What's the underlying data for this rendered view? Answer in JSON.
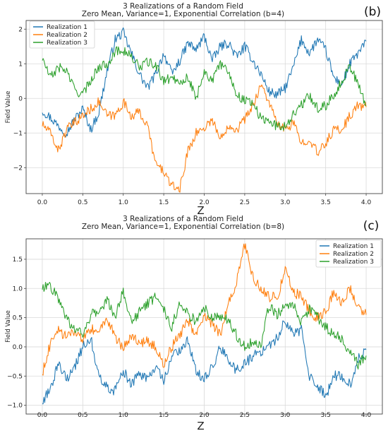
{
  "colors": {
    "series1": "#1f77b4",
    "series2": "#ff7f0e",
    "series3": "#2ca02c"
  },
  "chart_data": [
    {
      "type": "line",
      "panel_label": "(b)",
      "title": "3 Realizations of a Random Field",
      "subtitle": "Zero Mean, Variance=1, Exponential Correlation (b=4)",
      "xlabel": "Z",
      "ylabel": "Field Value",
      "xlim": [
        -0.2,
        4.2
      ],
      "ylim": [
        -2.75,
        2.25
      ],
      "xticks": [
        0.0,
        0.5,
        1.0,
        1.5,
        2.0,
        2.5,
        3.0,
        3.5,
        4.0
      ],
      "xtick_labels": [
        "0.0",
        "0.5",
        "1.0",
        "1.5",
        "2.0",
        "2.5",
        "3.0",
        "3.5",
        "4.0"
      ],
      "yticks": [
        -2,
        -1,
        0,
        1,
        2
      ],
      "ytick_labels": [
        "−2",
        "−1",
        "0",
        "1",
        "2"
      ],
      "grid": true,
      "legend": "top-left",
      "x": [
        0.0,
        0.1,
        0.2,
        0.3,
        0.4,
        0.5,
        0.6,
        0.7,
        0.8,
        0.9,
        1.0,
        1.1,
        1.2,
        1.3,
        1.4,
        1.5,
        1.6,
        1.7,
        1.8,
        1.9,
        2.0,
        2.1,
        2.2,
        2.3,
        2.4,
        2.5,
        2.6,
        2.7,
        2.8,
        2.9,
        3.0,
        3.1,
        3.2,
        3.3,
        3.4,
        3.5,
        3.6,
        3.7,
        3.8,
        3.9,
        4.0
      ],
      "series": [
        {
          "name": "Realization 1",
          "values": [
            -0.35,
            -0.55,
            -0.8,
            -1.0,
            -0.6,
            -0.3,
            -0.9,
            -0.4,
            0.8,
            1.7,
            1.9,
            1.3,
            0.7,
            0.3,
            0.7,
            1.3,
            0.7,
            1.1,
            1.6,
            1.4,
            1.8,
            1.1,
            1.5,
            1.6,
            1.2,
            1.5,
            1.1,
            0.7,
            0.2,
            0.1,
            0.3,
            0.9,
            1.7,
            1.3,
            1.7,
            1.4,
            0.6,
            0.4,
            1.0,
            1.3,
            1.65
          ]
        },
        {
          "name": "Realization 2",
          "values": [
            -0.75,
            -1.0,
            -1.5,
            -0.9,
            -0.7,
            -0.5,
            -0.3,
            -0.1,
            -0.5,
            -0.5,
            -0.1,
            -0.5,
            -0.4,
            -0.8,
            -1.9,
            -2.1,
            -2.55,
            -2.6,
            -1.5,
            -1.0,
            -0.85,
            -0.6,
            -1.2,
            -0.75,
            -0.9,
            -0.6,
            -0.2,
            0.4,
            -0.1,
            -0.75,
            -0.9,
            -0.7,
            -1.3,
            -1.15,
            -1.6,
            -1.3,
            -0.9,
            -0.9,
            -0.5,
            -0.2,
            -0.25
          ]
        },
        {
          "name": "Realization 3",
          "values": [
            1.15,
            0.6,
            0.9,
            0.8,
            0.25,
            0.1,
            0.55,
            0.9,
            1.0,
            1.35,
            1.4,
            1.2,
            0.9,
            1.05,
            0.95,
            0.5,
            0.6,
            0.5,
            0.6,
            0.0,
            0.8,
            0.5,
            1.0,
            0.8,
            0.1,
            -0.05,
            -0.1,
            -0.6,
            -0.65,
            -0.8,
            -0.8,
            -0.45,
            -0.2,
            0.1,
            -0.3,
            -0.2,
            0.1,
            0.5,
            0.95,
            0.4,
            -0.2
          ]
        }
      ]
    },
    {
      "type": "line",
      "panel_label": "(c)",
      "title": "3 Realizations of a Random Field",
      "subtitle": "Zero Mean, Variance=1, Exponential Correlation (b=8)",
      "xlabel": "Z",
      "ylabel": "Field Value",
      "xlim": [
        -0.2,
        4.2
      ],
      "ylim": [
        -1.15,
        1.85
      ],
      "xticks": [
        0.0,
        0.5,
        1.0,
        1.5,
        2.0,
        2.5,
        3.0,
        3.5,
        4.0
      ],
      "xtick_labels": [
        "0.0",
        "0.5",
        "1.0",
        "1.5",
        "2.0",
        "2.5",
        "3.0",
        "3.5",
        "4.0"
      ],
      "yticks": [
        -1.0,
        -0.5,
        0.0,
        0.5,
        1.0,
        1.5
      ],
      "ytick_labels": [
        "−1.0",
        "−0.5",
        "0.0",
        "0.5",
        "1.0",
        "1.5"
      ],
      "grid": true,
      "legend": "top-right",
      "x": [
        0.0,
        0.1,
        0.2,
        0.3,
        0.4,
        0.5,
        0.6,
        0.7,
        0.8,
        0.9,
        1.0,
        1.1,
        1.2,
        1.3,
        1.4,
        1.5,
        1.6,
        1.7,
        1.8,
        1.9,
        2.0,
        2.1,
        2.2,
        2.3,
        2.4,
        2.5,
        2.6,
        2.7,
        2.8,
        2.9,
        3.0,
        3.1,
        3.2,
        3.3,
        3.4,
        3.5,
        3.6,
        3.7,
        3.8,
        3.9,
        4.0
      ],
      "series": [
        {
          "name": "Realization 1",
          "values": [
            -0.95,
            -0.7,
            -0.3,
            -0.55,
            -0.35,
            0.0,
            0.15,
            -0.5,
            -0.7,
            -0.75,
            -0.4,
            -0.65,
            -0.45,
            -0.55,
            -0.35,
            -0.6,
            -0.15,
            -0.05,
            0.1,
            -0.4,
            -0.55,
            -0.35,
            0.0,
            -0.25,
            -0.4,
            -0.3,
            -0.15,
            -0.1,
            0.0,
            0.15,
            0.45,
            0.2,
            0.3,
            -0.5,
            -0.65,
            -0.85,
            -0.5,
            -0.5,
            -0.65,
            -0.2,
            -0.05
          ]
        },
        {
          "name": "Realization 2",
          "values": [
            -0.45,
            0.05,
            0.3,
            0.15,
            0.25,
            0.1,
            0.3,
            0.25,
            0.5,
            0.15,
            0.0,
            0.2,
            0.05,
            0.1,
            0.0,
            -0.3,
            0.0,
            0.2,
            0.45,
            0.2,
            0.5,
            0.4,
            0.2,
            0.75,
            1.1,
            1.75,
            1.2,
            1.0,
            0.85,
            0.85,
            1.3,
            0.95,
            0.85,
            0.6,
            0.5,
            0.6,
            0.95,
            0.75,
            1.0,
            0.7,
            0.55
          ]
        },
        {
          "name": "Realization 3",
          "values": [
            1.0,
            1.05,
            0.8,
            0.5,
            0.3,
            0.2,
            0.55,
            0.6,
            0.8,
            0.5,
            0.95,
            0.4,
            0.6,
            0.75,
            0.85,
            0.65,
            0.35,
            0.75,
            0.55,
            0.45,
            0.7,
            0.5,
            0.5,
            0.45,
            0.2,
            0.0,
            0.1,
            0.05,
            0.7,
            0.55,
            0.7,
            0.75,
            0.4,
            0.65,
            0.5,
            0.35,
            0.2,
            0.15,
            -0.1,
            -0.3,
            -0.15
          ]
        }
      ]
    }
  ]
}
